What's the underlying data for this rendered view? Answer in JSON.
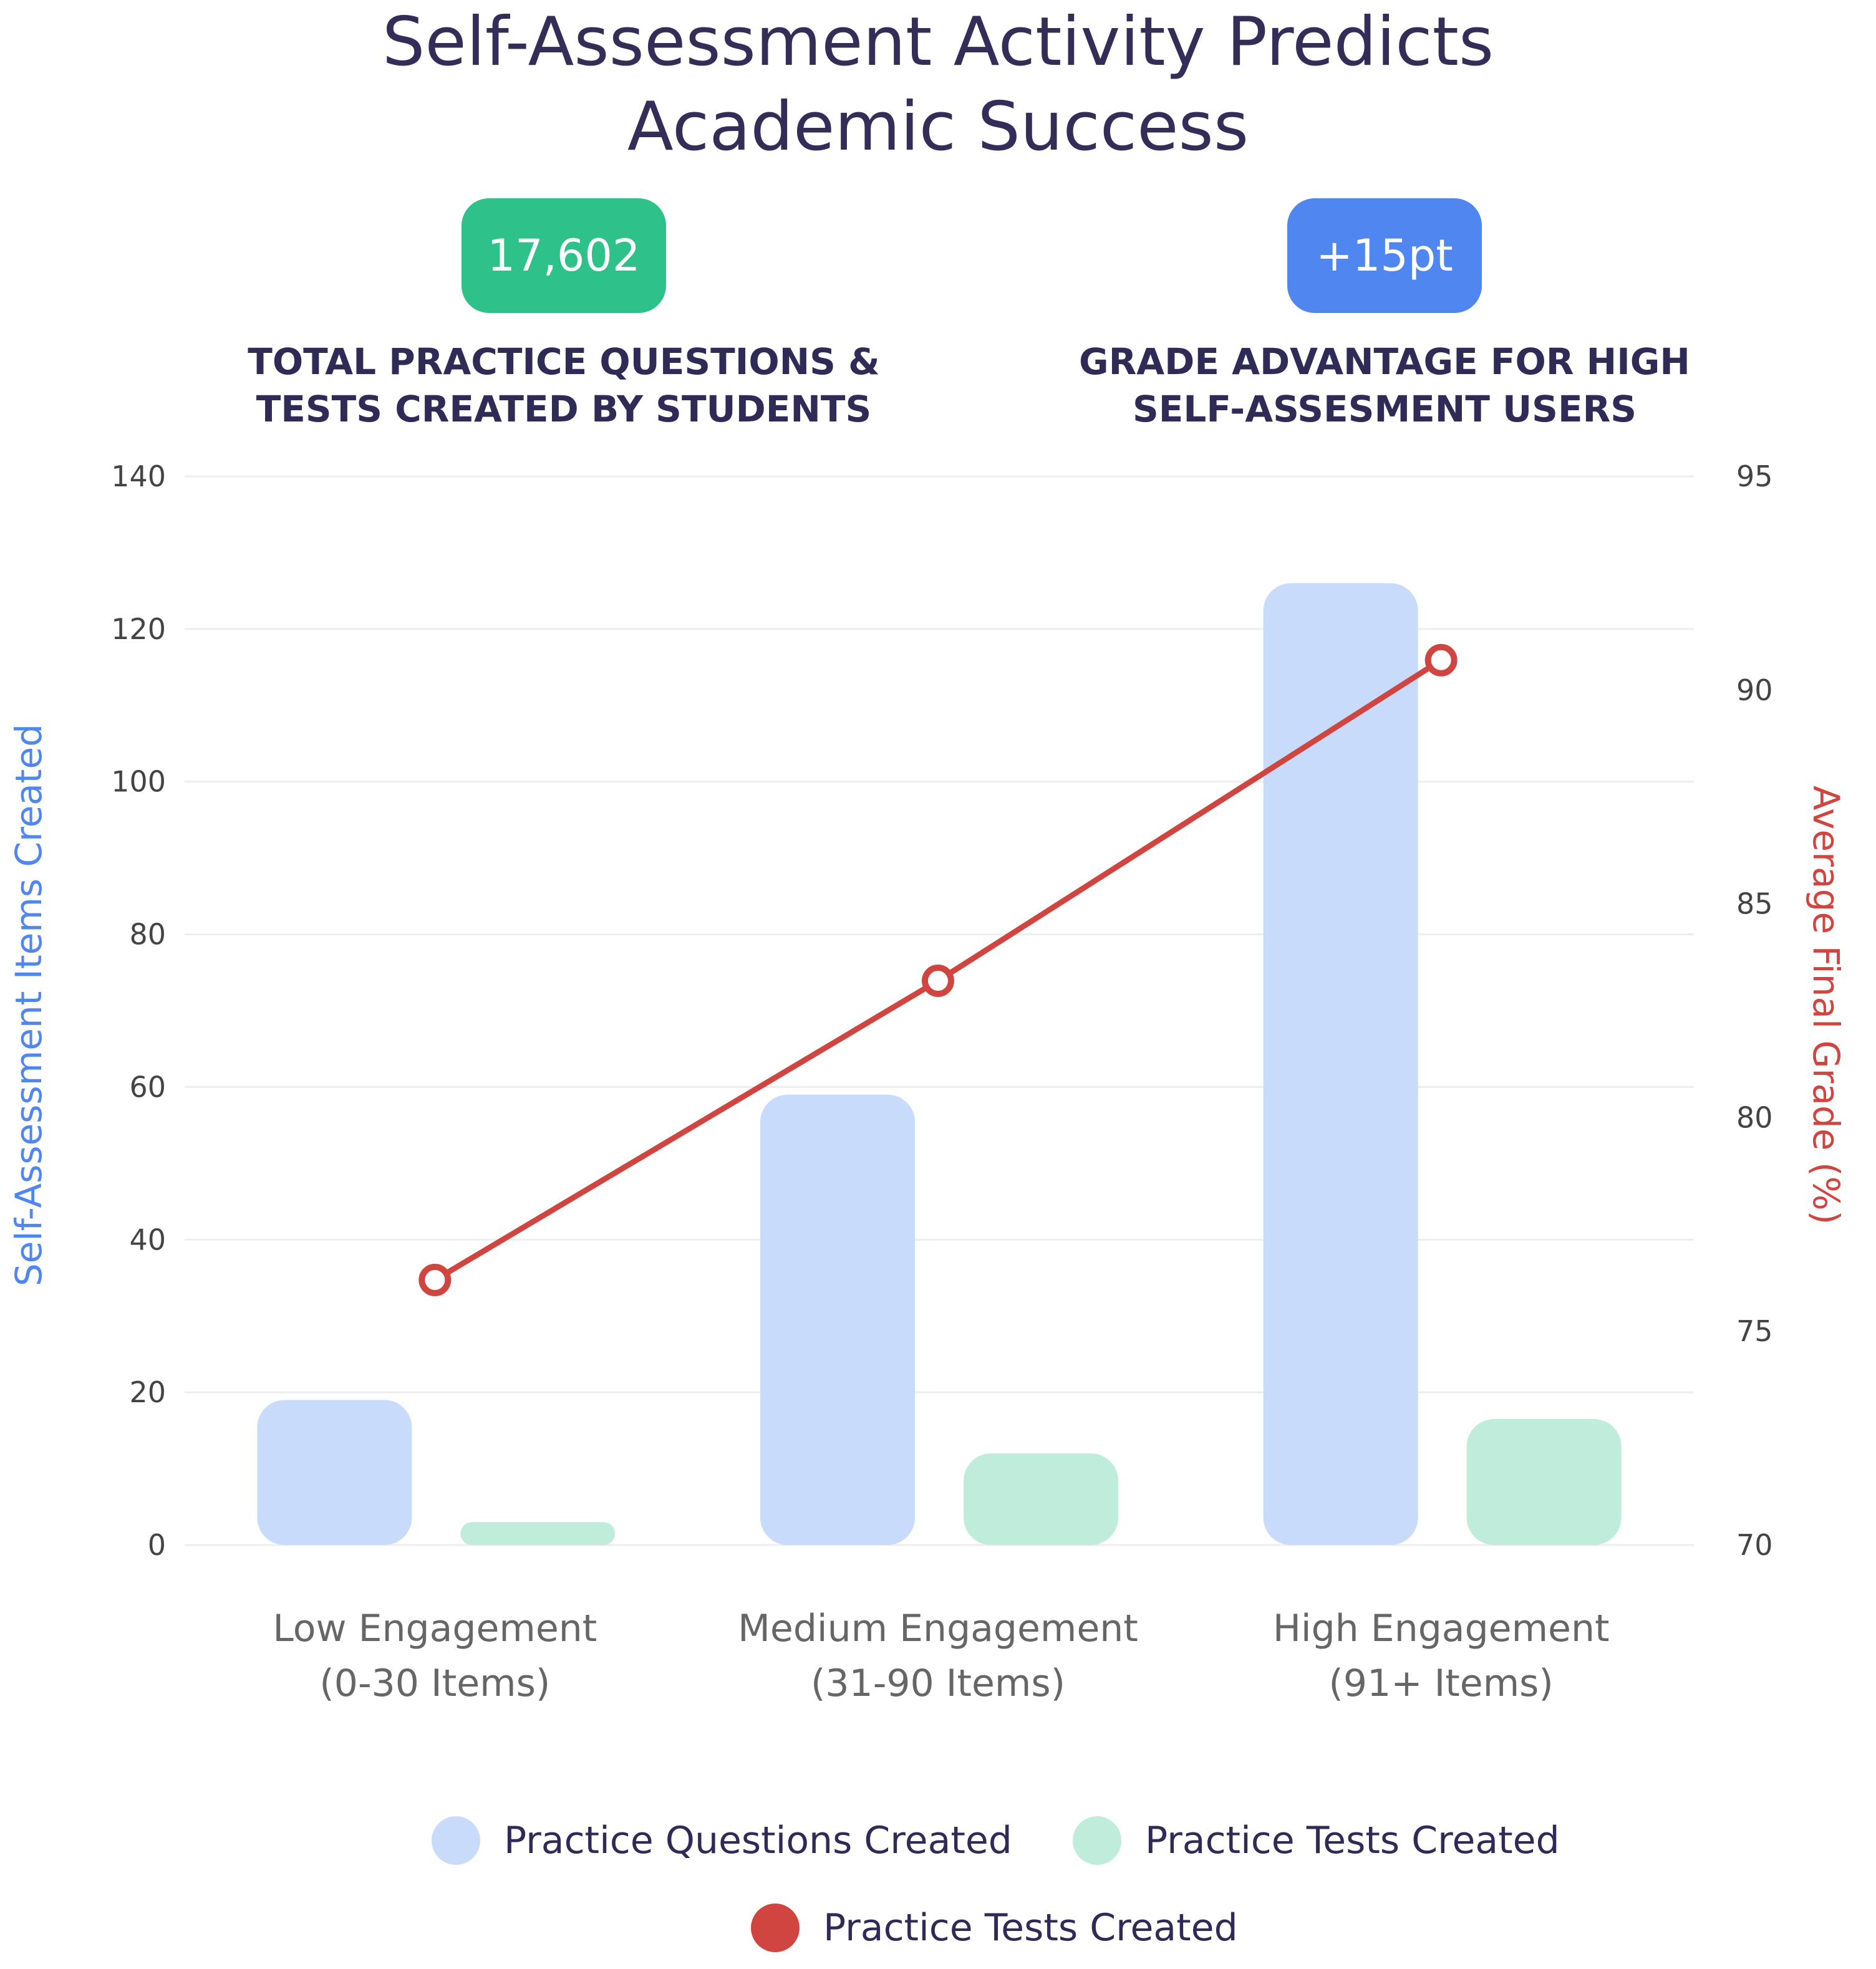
{
  "title_line1": "Self-Assessment Activity Predicts",
  "title_line2": "Academic Success",
  "stats": [
    {
      "value": "17,602",
      "label_line1": "TOTAL PRACTICE QUESTIONS &",
      "label_line2": "TESTS CREATED BY STUDENTS",
      "color": "#2ec28a"
    },
    {
      "value": "+15pt",
      "label_line1": "GRADE ADVANTAGE FOR HIGH",
      "label_line2": "SELF-ASSESMENT USERS",
      "color": "#4f86ef"
    }
  ],
  "legend": [
    {
      "label": "Practice Questions Created",
      "color": "#c9dbfa"
    },
    {
      "label": "Practice Tests Created",
      "color": "#c0ecdc"
    },
    {
      "label": "Practice Tests Created",
      "color": "#d0453f"
    }
  ],
  "chart_data": {
    "type": "bar",
    "categories": [
      [
        "Low Engagement",
        "(0-30 Items)"
      ],
      [
        "Medium Engagement",
        "(31-90 Items)"
      ],
      [
        "High Engagement",
        "(91+ Items)"
      ]
    ],
    "series": [
      {
        "name": "Practice Questions Created",
        "type": "bar",
        "axis": "left",
        "color": "#c9dbfa",
        "values": [
          19,
          59,
          126
        ]
      },
      {
        "name": "Practice Tests Created",
        "type": "bar",
        "axis": "left",
        "color": "#c0ecdc",
        "values": [
          3,
          12,
          16.5
        ]
      },
      {
        "name": "Practice Tests Created",
        "type": "line",
        "axis": "right",
        "color": "#d0453f",
        "values": [
          76.2,
          83.2,
          90.7
        ]
      }
    ],
    "ylabel": "Self-Assessment Items Created",
    "ylabel_color": "#4f86ef",
    "ylim": [
      0,
      140
    ],
    "yticks": [
      0,
      20,
      40,
      60,
      80,
      100,
      120,
      140
    ],
    "y2label": "Average Final Grade (%)",
    "y2label_color": "#d0453f",
    "y2lim": [
      70,
      95
    ],
    "y2ticks": [
      70,
      75,
      80,
      85,
      90,
      95
    ],
    "grid": true,
    "legend_position": "bottom"
  }
}
